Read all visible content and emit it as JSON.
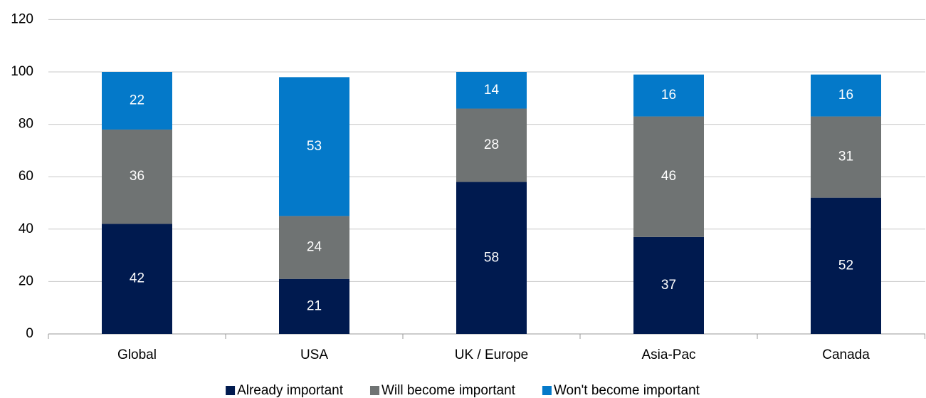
{
  "chart_data": {
    "type": "stacked_bar",
    "categories": [
      "Global",
      "USA",
      "UK / Europe",
      "Asia-Pac",
      "Canada"
    ],
    "series": [
      {
        "name": "Already important",
        "color": "#001a4f",
        "values": [
          42,
          21,
          58,
          37,
          52
        ]
      },
      {
        "name": "Will become important",
        "color": "#6f7373",
        "values": [
          36,
          24,
          28,
          46,
          31
        ]
      },
      {
        "name": "Won't become important",
        "color": "#0479c9",
        "values": [
          22,
          53,
          14,
          16,
          16
        ]
      }
    ],
    "ylim": [
      0,
      120
    ],
    "yticks": [
      0,
      20,
      40,
      60,
      80,
      100,
      120
    ],
    "grid": true,
    "legend": "bottom"
  }
}
